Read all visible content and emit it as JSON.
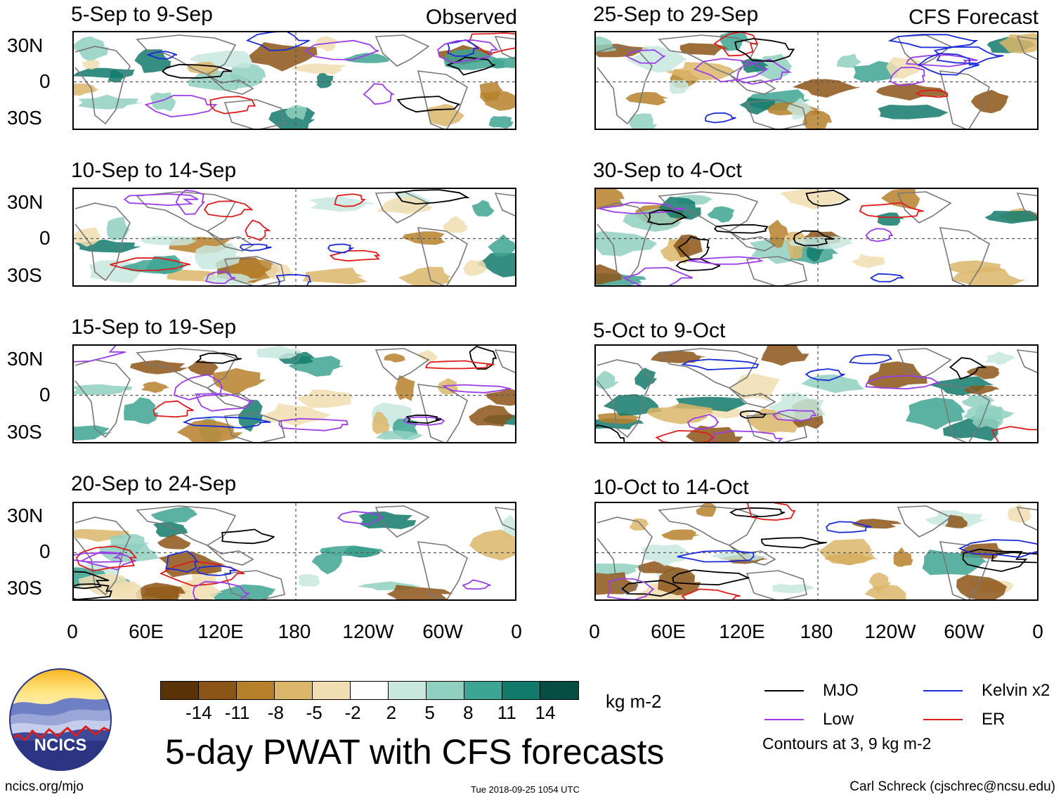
{
  "title": "5-day PWAT with CFS forecasts",
  "column_tags": {
    "observed": "Observed",
    "forecast": "CFS Forecast"
  },
  "observed_panels": [
    {
      "period": "5-Sep to 9-Sep"
    },
    {
      "period": "10-Sep to 14-Sep"
    },
    {
      "period": "15-Sep to 19-Sep"
    },
    {
      "period": "20-Sep to 24-Sep"
    }
  ],
  "forecast_panels": [
    {
      "period": "25-Sep to 29-Sep"
    },
    {
      "period": "30-Sep to 4-Oct"
    },
    {
      "period": "5-Oct to 9-Oct"
    },
    {
      "period": "10-Oct to 14-Oct"
    }
  ],
  "latitude_labels": [
    "30N",
    "0",
    "30S"
  ],
  "longitude_labels": [
    "0",
    "60E",
    "120E",
    "180",
    "120W",
    "60W",
    "0"
  ],
  "colorbar": {
    "ticks": [
      "-14",
      "-11",
      "-8",
      "-5",
      "-2",
      "2",
      "5",
      "8",
      "11",
      "14"
    ],
    "colors": [
      "#5a3208",
      "#8c5518",
      "#b7812c",
      "#dcb66a",
      "#f1deb2",
      "#ffffff",
      "#c8e8de",
      "#8fd0c0",
      "#3ea493",
      "#127a6b",
      "#064d44"
    ],
    "units": "kg m-2"
  },
  "legend": {
    "items": [
      {
        "label": "MJO",
        "color": "#000000"
      },
      {
        "label": "Kelvin x2",
        "color": "#1a2cd9"
      },
      {
        "label": "Low",
        "color": "#9b3ee8"
      },
      {
        "label": "ER",
        "color": "#e01b1b"
      }
    ],
    "note": "Contours at 3, 9 kg m-2"
  },
  "logo_text": "NCICS",
  "footer": {
    "url": "ncics.org/mjo",
    "timestamp": "Tue 2018-09-25 1054 UTC",
    "author": "Carl Schreck (cjschrec@ncsu.edu)"
  }
}
